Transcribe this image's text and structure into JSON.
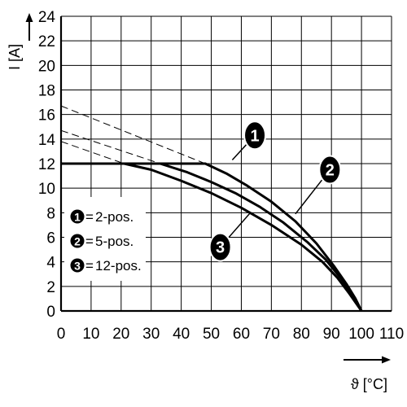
{
  "chart_data": {
    "type": "line",
    "xlabel": "ϑ [°C]",
    "ylabel": "I [A]",
    "xlim": [
      0,
      110
    ],
    "ylim": [
      0,
      24
    ],
    "x_ticks": [
      "0",
      "10",
      "20",
      "30",
      "40",
      "50",
      "60",
      "70",
      "80",
      "90",
      "100",
      "110"
    ],
    "y_ticks": [
      "0",
      "2",
      "4",
      "6",
      "8",
      "10",
      "12",
      "14",
      "16",
      "18",
      "20",
      "22",
      "24"
    ],
    "grid": true,
    "legend_placement": "lower-left",
    "series": [
      {
        "id": "1",
        "name": "2-pos.",
        "points": [
          [
            0,
            12
          ],
          [
            48,
            12
          ],
          [
            55,
            11.2
          ],
          [
            62,
            10.2
          ],
          [
            70,
            8.9
          ],
          [
            78,
            7.3
          ],
          [
            85,
            5.5
          ],
          [
            91,
            3.6
          ],
          [
            95,
            2.2
          ],
          [
            98,
            1.0
          ],
          [
            100,
            0
          ]
        ],
        "extrapolation": [
          [
            0,
            16.7
          ],
          [
            48,
            12
          ]
        ]
      },
      {
        "id": "2",
        "name": "5-pos.",
        "points": [
          [
            0,
            12
          ],
          [
            33,
            12
          ],
          [
            42,
            11.3
          ],
          [
            50,
            10.5
          ],
          [
            58,
            9.6
          ],
          [
            66,
            8.5
          ],
          [
            74,
            7.2
          ],
          [
            82,
            5.6
          ],
          [
            88,
            4.2
          ],
          [
            93,
            2.7
          ],
          [
            97,
            1.3
          ],
          [
            100,
            0
          ]
        ],
        "extrapolation": [
          [
            0,
            14.7
          ],
          [
            33,
            12
          ]
        ]
      },
      {
        "id": "3",
        "name": "12-pos.",
        "points": [
          [
            0,
            12
          ],
          [
            21,
            12
          ],
          [
            30,
            11.5
          ],
          [
            40,
            10.6
          ],
          [
            50,
            9.6
          ],
          [
            60,
            8.4
          ],
          [
            70,
            7.0
          ],
          [
            80,
            5.4
          ],
          [
            87,
            4.0
          ],
          [
            92,
            2.7
          ],
          [
            96,
            1.4
          ],
          [
            100,
            0
          ]
        ],
        "extrapolation": [
          [
            0,
            13.8
          ],
          [
            21,
            12
          ]
        ]
      }
    ],
    "callouts": [
      {
        "label": "1",
        "x": 64.5,
        "y": 14.3
      },
      {
        "label": "2",
        "x": 89.5,
        "y": 11.5
      },
      {
        "label": "3",
        "x": 53,
        "y": 5.2
      }
    ],
    "colors": {
      "line": "#000000",
      "grid": "#000000",
      "background": "#ffffff"
    }
  }
}
